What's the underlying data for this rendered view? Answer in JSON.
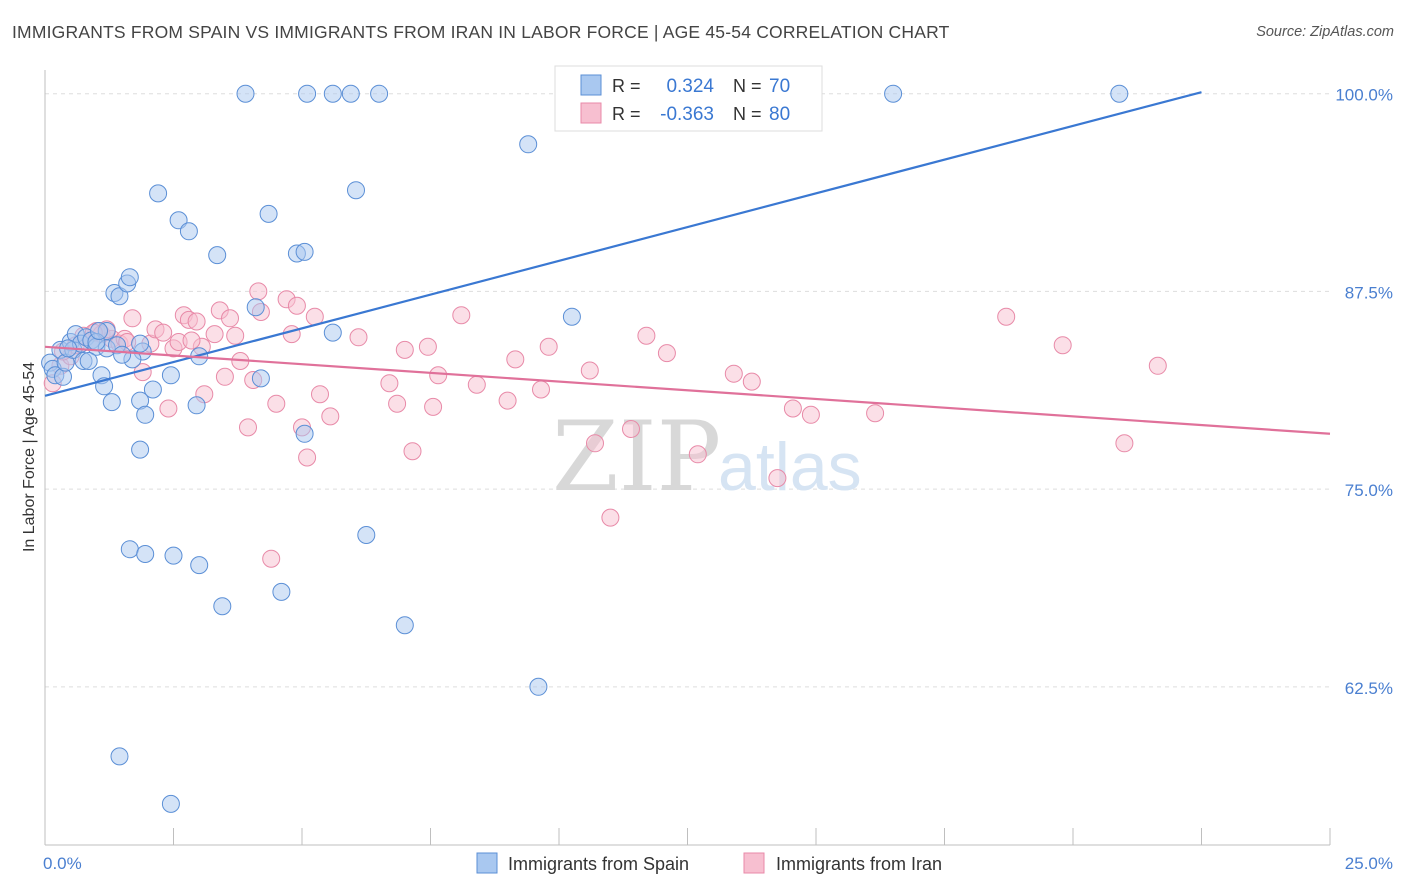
{
  "title": "IMMIGRANTS FROM SPAIN VS IMMIGRANTS FROM IRAN IN LABOR FORCE | AGE 45-54 CORRELATION CHART",
  "source": "Source: ZipAtlas.com",
  "watermark": {
    "zip": "ZIP",
    "atlas": "atlas"
  },
  "colors": {
    "spain_fill": "#a9c8f0",
    "spain_stroke": "#5b8fd6",
    "spain_line": "#3a78d2",
    "iran_fill": "#f7bfd0",
    "iran_stroke": "#e88aa8",
    "iran_line": "#e0719a",
    "tick_label": "#4a7fd0",
    "grid": "#dddddd"
  },
  "legend": {
    "spain": {
      "r_label": "R =",
      "r_value": "0.324",
      "n_label": "N =",
      "n_value": "70"
    },
    "iran": {
      "r_label": "R =",
      "r_value": "-0.363",
      "n_label": "N =",
      "n_value": "80"
    }
  },
  "bottom_legend": {
    "spain": "Immigrants from Spain",
    "iran": "Immigrants from Iran"
  },
  "chart_data": {
    "type": "scatter",
    "xlabel": "",
    "ylabel": "In Labor Force | Age 45-54",
    "xlim": [
      0,
      25
    ],
    "ylim": [
      52.5,
      101.5
    ],
    "x_tick_labels": {
      "min": "0.0%",
      "max": "25.0%"
    },
    "y_ticks": [
      100,
      87.5,
      75,
      62.5
    ],
    "y_tick_labels": [
      "100.0%",
      "87.5%",
      "75.0%",
      "62.5%"
    ],
    "series": [
      {
        "name": "Immigrants from Spain",
        "r": 0.324,
        "n": 70,
        "trend": {
          "x": [
            0,
            22.5
          ],
          "y": [
            80.9,
            100.1
          ]
        },
        "points": [
          [
            0.1,
            83.0
          ],
          [
            0.15,
            82.6
          ],
          [
            0.2,
            82.2
          ],
          [
            0.3,
            83.8
          ],
          [
            0.35,
            82.1
          ],
          [
            0.4,
            83.0
          ],
          [
            0.5,
            84.3
          ],
          [
            0.55,
            83.8
          ],
          [
            0.6,
            84.8
          ],
          [
            0.7,
            84.2
          ],
          [
            0.75,
            83.1
          ],
          [
            0.8,
            84.6
          ],
          [
            0.9,
            84.4
          ],
          [
            1.0,
            84.0
          ],
          [
            1.1,
            82.2
          ],
          [
            1.2,
            83.9
          ],
          [
            1.15,
            81.5
          ],
          [
            1.3,
            80.5
          ],
          [
            1.35,
            87.4
          ],
          [
            1.45,
            87.2
          ],
          [
            1.6,
            88.0
          ],
          [
            1.65,
            88.4
          ],
          [
            1.85,
            80.6
          ],
          [
            1.95,
            79.7
          ],
          [
            2.1,
            81.3
          ],
          [
            2.2,
            93.7
          ],
          [
            2.45,
            82.2
          ],
          [
            2.6,
            92.0
          ],
          [
            2.8,
            91.3
          ],
          [
            2.95,
            80.3
          ],
          [
            3.0,
            83.4
          ],
          [
            3.35,
            89.8
          ],
          [
            4.1,
            86.5
          ],
          [
            4.2,
            82.0
          ],
          [
            4.35,
            92.4
          ],
          [
            4.9,
            89.9
          ],
          [
            5.05,
            78.5
          ],
          [
            5.05,
            90.0
          ],
          [
            5.6,
            84.9
          ],
          [
            6.05,
            93.9
          ],
          [
            3.9,
            100.0
          ],
          [
            5.1,
            100.0
          ],
          [
            5.6,
            100.0
          ],
          [
            5.95,
            100.0
          ],
          [
            6.5,
            100.0
          ],
          [
            9.4,
            96.8
          ],
          [
            10.25,
            85.9
          ],
          [
            16.5,
            100.0
          ],
          [
            20.9,
            100.0
          ],
          [
            1.4,
            84.1
          ],
          [
            1.9,
            83.7
          ],
          [
            1.2,
            85.0
          ],
          [
            0.85,
            83.1
          ],
          [
            1.85,
            84.2
          ],
          [
            1.7,
            83.2
          ],
          [
            1.0,
            84.3
          ],
          [
            1.5,
            83.5
          ],
          [
            0.45,
            83.9
          ],
          [
            1.05,
            85.0
          ],
          [
            1.85,
            77.5
          ],
          [
            1.65,
            71.2
          ],
          [
            1.95,
            70.9
          ],
          [
            2.5,
            70.8
          ],
          [
            3.0,
            70.2
          ],
          [
            3.45,
            67.6
          ],
          [
            4.6,
            68.5
          ],
          [
            6.25,
            72.1
          ],
          [
            7.0,
            66.4
          ],
          [
            9.6,
            62.5
          ],
          [
            1.45,
            58.1
          ],
          [
            2.45,
            55.1
          ]
        ]
      },
      {
        "name": "Immigrants from Iran",
        "r": -0.363,
        "n": 80,
        "trend": {
          "x": [
            0,
            25
          ],
          "y": [
            84.0,
            78.5
          ]
        },
        "points": [
          [
            0.15,
            81.7
          ],
          [
            0.3,
            82.8
          ],
          [
            0.5,
            83.4
          ],
          [
            0.6,
            84.1
          ],
          [
            0.75,
            84.7
          ],
          [
            0.9,
            84.4
          ],
          [
            1.0,
            85.0
          ],
          [
            1.1,
            84.8
          ],
          [
            1.3,
            84.5
          ],
          [
            1.45,
            84.2
          ],
          [
            1.55,
            84.5
          ],
          [
            1.7,
            85.8
          ],
          [
            1.9,
            82.4
          ],
          [
            2.05,
            84.2
          ],
          [
            2.15,
            85.1
          ],
          [
            2.3,
            84.9
          ],
          [
            2.4,
            80.1
          ],
          [
            2.5,
            83.9
          ],
          [
            2.6,
            84.3
          ],
          [
            2.7,
            86.0
          ],
          [
            2.8,
            85.7
          ],
          [
            2.95,
            85.6
          ],
          [
            3.05,
            84.0
          ],
          [
            3.1,
            81.0
          ],
          [
            3.3,
            84.8
          ],
          [
            3.4,
            86.3
          ],
          [
            3.5,
            82.1
          ],
          [
            3.6,
            85.8
          ],
          [
            3.8,
            83.1
          ],
          [
            3.95,
            78.9
          ],
          [
            4.05,
            81.9
          ],
          [
            4.15,
            87.5
          ],
          [
            4.2,
            86.2
          ],
          [
            4.4,
            70.6
          ],
          [
            4.5,
            80.4
          ],
          [
            4.7,
            87.0
          ],
          [
            4.8,
            84.8
          ],
          [
            4.9,
            86.6
          ],
          [
            5.0,
            78.9
          ],
          [
            5.1,
            77.0
          ],
          [
            5.25,
            85.9
          ],
          [
            5.35,
            81.0
          ],
          [
            5.55,
            79.6
          ],
          [
            6.1,
            84.6
          ],
          [
            6.7,
            81.7
          ],
          [
            6.85,
            80.4
          ],
          [
            7.0,
            83.8
          ],
          [
            7.15,
            77.4
          ],
          [
            7.45,
            84.0
          ],
          [
            7.55,
            80.2
          ],
          [
            7.65,
            82.2
          ],
          [
            8.1,
            86.0
          ],
          [
            8.4,
            81.6
          ],
          [
            9.0,
            80.6
          ],
          [
            9.15,
            83.2
          ],
          [
            9.65,
            81.3
          ],
          [
            9.8,
            84.0
          ],
          [
            10.6,
            82.5
          ],
          [
            10.7,
            77.9
          ],
          [
            11.0,
            73.2
          ],
          [
            11.4,
            78.8
          ],
          [
            11.7,
            84.7
          ],
          [
            12.1,
            83.6
          ],
          [
            12.7,
            77.2
          ],
          [
            13.4,
            82.3
          ],
          [
            13.75,
            81.8
          ],
          [
            14.25,
            75.7
          ],
          [
            14.55,
            80.1
          ],
          [
            14.9,
            79.7
          ],
          [
            16.15,
            79.8
          ],
          [
            18.7,
            85.9
          ],
          [
            19.8,
            84.1
          ],
          [
            21.0,
            77.9
          ],
          [
            21.65,
            82.8
          ],
          [
            1.2,
            85.1
          ],
          [
            0.35,
            83.7
          ],
          [
            2.85,
            84.4
          ],
          [
            1.6,
            84.3
          ],
          [
            0.95,
            84.9
          ],
          [
            3.7,
            84.7
          ]
        ]
      }
    ]
  }
}
